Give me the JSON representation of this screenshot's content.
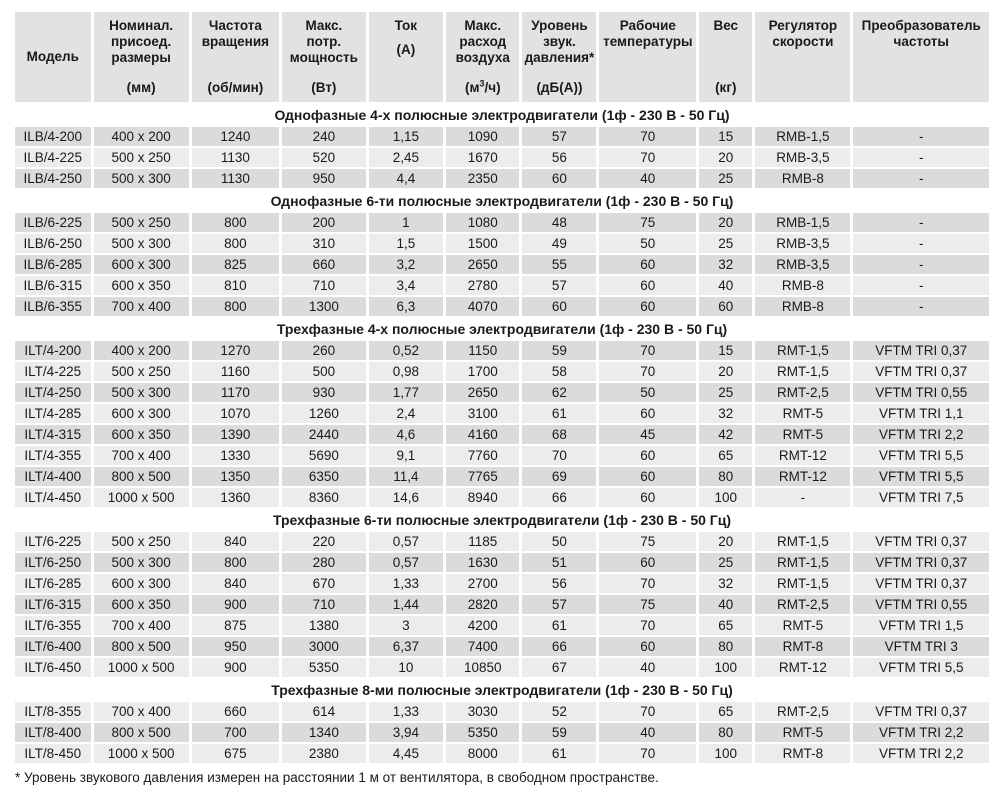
{
  "colors": {
    "header_bg": "#e2e2e2",
    "row_dark": "#dbdbdb",
    "row_light": "#ececec",
    "section_title_bg": "#ffffff",
    "text": "#1a1a1a"
  },
  "table": {
    "columns": [
      {
        "id": "model",
        "lines_top": [
          "Модель"
        ],
        "lines_bottom": [],
        "center": true
      },
      {
        "id": "dimensions",
        "lines_top": [
          "Номинал.",
          "присоед.",
          "размеры"
        ],
        "lines_bottom": [
          "(мм)"
        ]
      },
      {
        "id": "rpm",
        "lines_top": [
          "Частота",
          "вращения"
        ],
        "lines_bottom": [
          "(об/мин)"
        ]
      },
      {
        "id": "power",
        "lines_top": [
          "Макс.",
          "потр.",
          "мощность"
        ],
        "lines_bottom": [
          "(Вт)"
        ]
      },
      {
        "id": "current",
        "lines_top": [
          "Ток",
          "(А)"
        ],
        "lines_bottom": [],
        "top_gap": true
      },
      {
        "id": "airflow",
        "lines_top": [
          "Макс.",
          "расход",
          "воздуха"
        ],
        "lines_bottom": [],
        "bottom_sup": [
          "(м",
          "3",
          "/ч)"
        ]
      },
      {
        "id": "noise",
        "lines_top": [
          "Уровень",
          "звук.",
          "давления*"
        ],
        "lines_bottom": [
          "(дБ(А))"
        ]
      },
      {
        "id": "temperature",
        "lines_top": [
          "Рабочие",
          "температуры"
        ],
        "lines_bottom": []
      },
      {
        "id": "weight",
        "lines_top": [
          "Вес"
        ],
        "lines_bottom": [
          "(кг)"
        ]
      },
      {
        "id": "regulator",
        "lines_top": [
          "Регулятор",
          "скорости"
        ],
        "lines_bottom": []
      },
      {
        "id": "converter",
        "lines_top": [
          "Преобразователь",
          "частоты"
        ],
        "lines_bottom": []
      }
    ],
    "sections": [
      {
        "title": "Однофазные 4-х полюсные электродвигатели (1ф - 230 В - 50 Гц)",
        "rows": [
          [
            "ILB/4-200",
            "400 x 200",
            "1240",
            "240",
            "1,15",
            "1090",
            "57",
            "70",
            "15",
            "RMB-1,5",
            "-"
          ],
          [
            "ILB/4-225",
            "500 x 250",
            "1130",
            "520",
            "2,45",
            "1670",
            "56",
            "70",
            "20",
            "RMB-3,5",
            "-"
          ],
          [
            "ILB/4-250",
            "500 x 300",
            "1130",
            "950",
            "4,4",
            "2350",
            "60",
            "40",
            "25",
            "RMB-8",
            "-"
          ]
        ]
      },
      {
        "title": "Однофазные 6-ти полюсные электродвигатели (1ф - 230 В - 50 Гц)",
        "rows": [
          [
            "ILB/6-225",
            "500 x 250",
            "800",
            "200",
            "1",
            "1080",
            "48",
            "75",
            "20",
            "RMB-1,5",
            "-"
          ],
          [
            "ILB/6-250",
            "500 x 300",
            "800",
            "310",
            "1,5",
            "1500",
            "49",
            "50",
            "25",
            "RMB-3,5",
            "-"
          ],
          [
            "ILB/6-285",
            "600 x 300",
            "825",
            "660",
            "3,2",
            "2650",
            "55",
            "60",
            "32",
            "RMB-3,5",
            "-"
          ],
          [
            "ILB/6-315",
            "600 x 350",
            "810",
            "710",
            "3,4",
            "2780",
            "57",
            "60",
            "40",
            "RMB-8",
            "-"
          ],
          [
            "ILB/6-355",
            "700 x 400",
            "800",
            "1300",
            "6,3",
            "4070",
            "60",
            "60",
            "60",
            "RMB-8",
            "-"
          ]
        ]
      },
      {
        "title": "Трехфазные 4-х полюсные электродвигатели (1ф - 230 В - 50 Гц)",
        "rows": [
          [
            "ILT/4-200",
            "400 x 200",
            "1270",
            "260",
            "0,52",
            "1150",
            "59",
            "70",
            "15",
            "RMT-1,5",
            "VFTM TRI 0,37"
          ],
          [
            "ILT/4-225",
            "500 x 250",
            "1160",
            "500",
            "0,98",
            "1700",
            "58",
            "70",
            "20",
            "RMT-1,5",
            "VFTM TRI 0,37"
          ],
          [
            "ILT/4-250",
            "500 x 300",
            "1170",
            "930",
            "1,77",
            "2650",
            "62",
            "50",
            "25",
            "RMT-2,5",
            "VFTM TRI 0,55"
          ],
          [
            "ILT/4-285",
            "600 x 300",
            "1070",
            "1260",
            "2,4",
            "3100",
            "61",
            "60",
            "32",
            "RMT-5",
            "VFTM TRI 1,1"
          ],
          [
            "ILT/4-315",
            "600 x 350",
            "1390",
            "2440",
            "4,6",
            "4160",
            "68",
            "45",
            "42",
            "RMT-5",
            "VFTM TRI 2,2"
          ],
          [
            "ILT/4-355",
            "700 x 400",
            "1330",
            "5690",
            "9,1",
            "7760",
            "70",
            "60",
            "65",
            "RMT-12",
            "VFTM TRI 5,5"
          ],
          [
            "ILT/4-400",
            "800 x 500",
            "1350",
            "6350",
            "11,4",
            "7765",
            "69",
            "60",
            "80",
            "RMT-12",
            "VFTM TRI 5,5"
          ],
          [
            "ILT/4-450",
            "1000 x 500",
            "1360",
            "8360",
            "14,6",
            "8940",
            "66",
            "60",
            "100",
            "-",
            "VFTM TRI 7,5"
          ]
        ]
      },
      {
        "title": "Трехфазные 6-ти полюсные электродвигатели (1ф - 230 В - 50 Гц)",
        "rows": [
          [
            "ILT/6-225",
            "500 x 250",
            "840",
            "220",
            "0,57",
            "1185",
            "50",
            "75",
            "20",
            "RMT-1,5",
            "VFTM TRI 0,37"
          ],
          [
            "ILT/6-250",
            "500 x 300",
            "800",
            "280",
            "0,57",
            "1630",
            "51",
            "60",
            "25",
            "RMT-1,5",
            "VFTM TRI 0,37"
          ],
          [
            "ILT/6-285",
            "600 x 300",
            "840",
            "670",
            "1,33",
            "2700",
            "56",
            "70",
            "32",
            "RMT-1,5",
            "VFTM TRI 0,37"
          ],
          [
            "ILT/6-315",
            "600 x 350",
            "900",
            "710",
            "1,44",
            "2820",
            "57",
            "75",
            "40",
            "RMT-2,5",
            "VFTM TRI 0,55"
          ],
          [
            "ILT/6-355",
            "700 x 400",
            "875",
            "1380",
            "3",
            "4200",
            "61",
            "70",
            "65",
            "RMT-5",
            "VFTM TRI 1,5"
          ],
          [
            "ILT/6-400",
            "800 x 500",
            "950",
            "3000",
            "6,37",
            "7400",
            "66",
            "60",
            "80",
            "RMT-8",
            "VFTM TRI 3"
          ],
          [
            "ILT/6-450",
            "1000 x 500",
            "900",
            "5350",
            "10",
            "10850",
            "67",
            "40",
            "100",
            "RMT-12",
            "VFTM TRI 5,5"
          ]
        ]
      },
      {
        "title": "Трехфазные 8-ми полюсные электродвигатели (1ф - 230 В - 50 Гц)",
        "rows": [
          [
            "ILT/8-355",
            "700 x 400",
            "660",
            "614",
            "1,33",
            "3030",
            "52",
            "70",
            "65",
            "RMT-2,5",
            "VFTM TRI 0,37"
          ],
          [
            "ILT/8-400",
            "800 x 500",
            "700",
            "1340",
            "3,94",
            "5350",
            "59",
            "40",
            "80",
            "RMT-5",
            "VFTM TRI 2,2"
          ],
          [
            "ILT/8-450",
            "1000 x 500",
            "675",
            "2380",
            "4,45",
            "8000",
            "61",
            "70",
            "100",
            "RMT-8",
            "VFTM TRI 2,2"
          ]
        ]
      }
    ],
    "footnote": "* Уровень звукового давления измерен на расстоянии 1 м от вентилятора, в свободном пространстве."
  }
}
